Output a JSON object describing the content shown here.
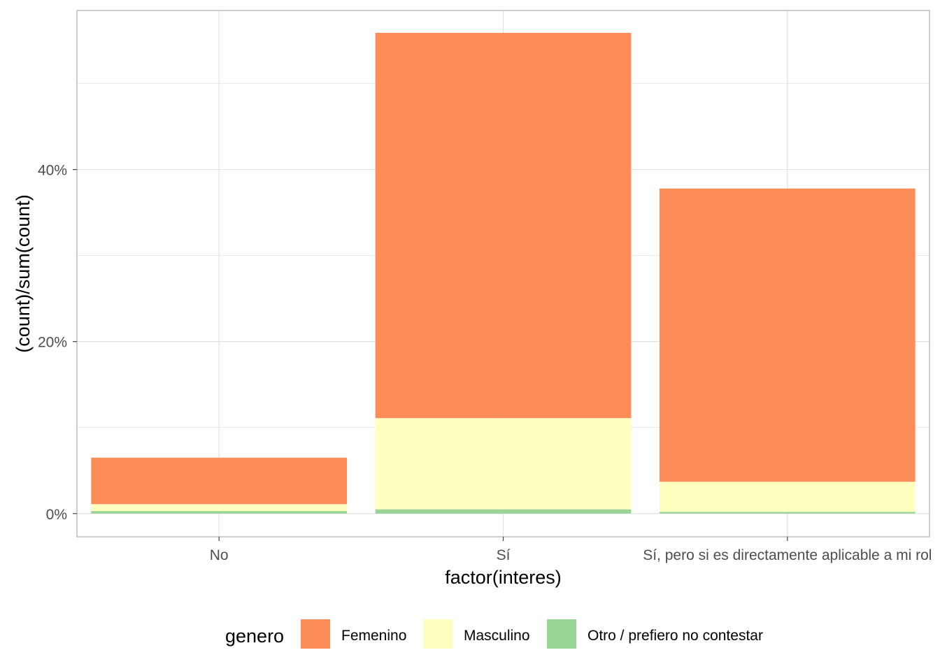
{
  "chart_data": {
    "type": "bar",
    "stacked": true,
    "categories": [
      "No",
      "Sí",
      "Sí, pero si es directamente aplicable a mi rol"
    ],
    "series": [
      {
        "name": "Otro / prefiero no contestar",
        "color": "#99d594",
        "values": [
          0.3,
          0.5,
          0.2
        ]
      },
      {
        "name": "Masculino",
        "color": "#ffffbf",
        "values": [
          0.8,
          10.6,
          3.5
        ]
      },
      {
        "name": "Femenino",
        "color": "#fc8d59",
        "values": [
          5.4,
          44.8,
          34.1
        ]
      }
    ],
    "xlabel": "factor(interes)",
    "ylabel": "(count)/sum(count)",
    "ylim": [
      -2.7,
      58.5
    ],
    "yticks": [
      0,
      20,
      40
    ],
    "ytick_labels": [
      "0%",
      "20%",
      "40%"
    ],
    "legend_title": "genero",
    "legend_order": [
      "Femenino",
      "Masculino",
      "Otro / prefiero no contestar"
    ],
    "legend_position": "bottom",
    "grid": true
  }
}
